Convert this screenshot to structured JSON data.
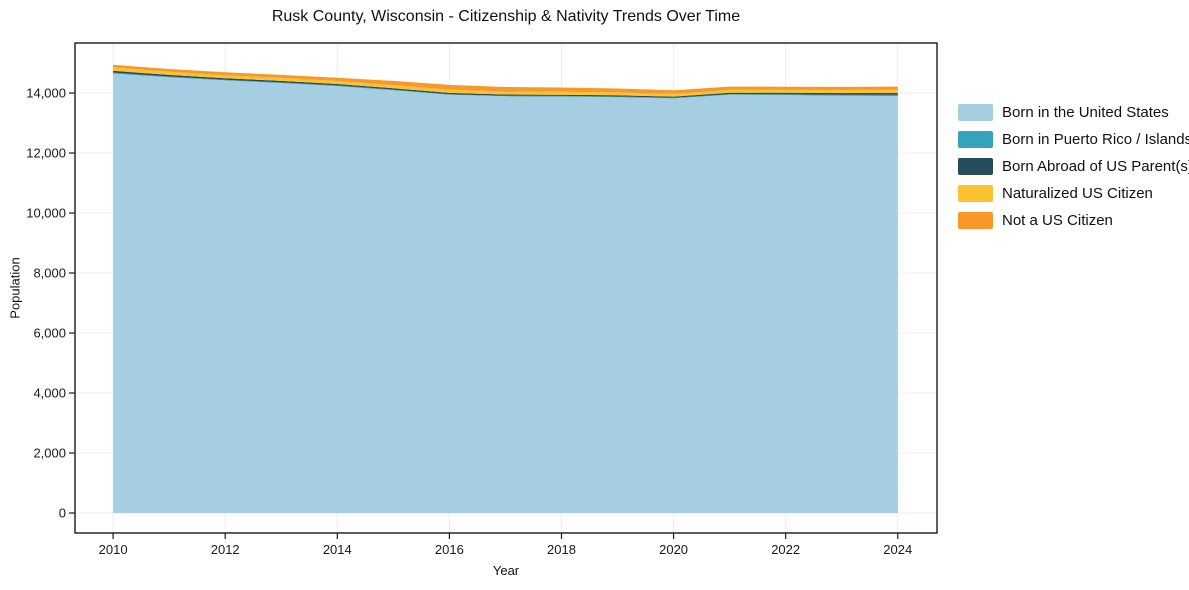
{
  "chart": {
    "title": "Rusk County, Wisconsin - Citizenship & Nativity Trends Over Time",
    "xlabel": "Year",
    "ylabel": "Population"
  },
  "chart_data": {
    "type": "area",
    "stacked": true,
    "title": "Rusk County, Wisconsin - Citizenship & Nativity Trends Over Time",
    "xlabel": "Year",
    "ylabel": "Population",
    "x": [
      2010,
      2011,
      2012,
      2013,
      2014,
      2015,
      2016,
      2017,
      2018,
      2019,
      2020,
      2021,
      2022,
      2023,
      2024
    ],
    "series": [
      {
        "name": "Born in the United States",
        "color": "#a6cee3",
        "values": [
          14650,
          14520,
          14420,
          14330,
          14230,
          14090,
          13940,
          13890,
          13880,
          13860,
          13820,
          13940,
          13930,
          13910,
          13900
        ]
      },
      {
        "name": "Born in Puerto Rico / Islands",
        "color": "#36a3bd",
        "values": [
          30,
          30,
          25,
          25,
          25,
          25,
          20,
          20,
          25,
          25,
          20,
          25,
          30,
          35,
          40
        ]
      },
      {
        "name": "Born Abroad of US Parent(s)",
        "color": "#254b5d",
        "values": [
          60,
          55,
          50,
          50,
          45,
          45,
          45,
          40,
          40,
          40,
          40,
          45,
          50,
          55,
          60
        ]
      },
      {
        "name": "Naturalized US Citizen",
        "color": "#fcc22f",
        "values": [
          110,
          105,
          100,
          100,
          100,
          105,
          105,
          100,
          100,
          95,
          90,
          95,
          95,
          100,
          105
        ]
      },
      {
        "name": "Not a US Citizen",
        "color": "#f8982b",
        "values": [
          90,
          90,
          95,
          100,
          110,
          140,
          160,
          150,
          140,
          130,
          120,
          110,
          105,
          105,
          110
        ]
      }
    ],
    "xticks": [
      2010,
      2012,
      2014,
      2016,
      2018,
      2020,
      2022,
      2024
    ],
    "yticks": [
      0,
      2000,
      4000,
      6000,
      8000,
      10000,
      12000,
      14000
    ],
    "xlim": [
      2009.32,
      2024.7
    ],
    "ylim": [
      -667,
      15667
    ],
    "grid": true,
    "legend_position": "right"
  }
}
